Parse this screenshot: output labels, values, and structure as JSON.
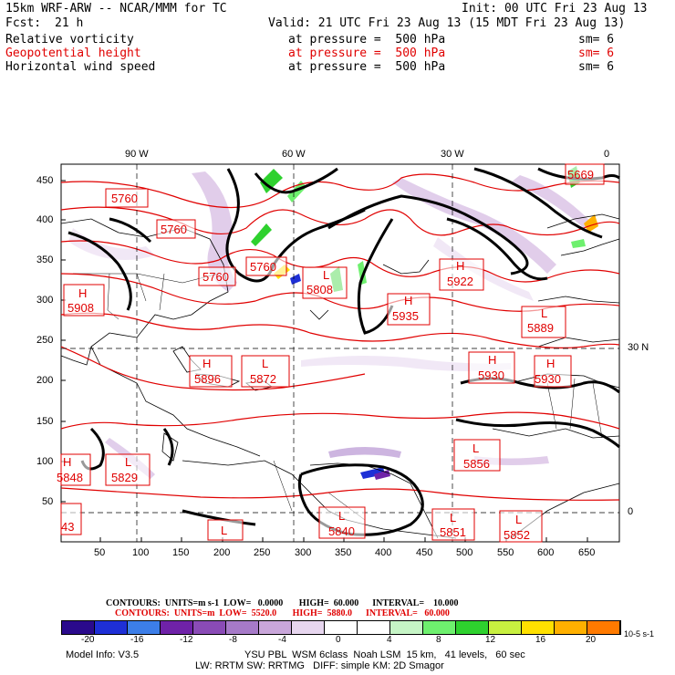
{
  "header": {
    "model": "15km WRF-ARW -- NCAR/MMM for TC",
    "init": "Init: 00 UTC Fri 23 Aug 13",
    "fcst_label": "Fcst:",
    "fcst_value": "21 h",
    "valid": "Valid: 21 UTC Fri 23 Aug 13 (15 MDT Fri 23 Aug 13)"
  },
  "fields": [
    {
      "name": "Relative vorticity",
      "level": "at pressure =  500 hPa",
      "smooth": "sm= 6",
      "color": "#000000"
    },
    {
      "name": "Geopotential height",
      "level": "at pressure =  500 hPa",
      "smooth": "sm= 6",
      "color": "#e00000"
    },
    {
      "name": "Horizontal wind speed",
      "level": "at pressure =  500 hPa",
      "smooth": "sm= 6",
      "color": "#000000"
    }
  ],
  "axes": {
    "lon_labels": [
      "90 W",
      "60 W",
      "30 W",
      "0"
    ],
    "lat_labels": [
      "30 N",
      "0"
    ],
    "y_ticks": [
      "450",
      "400",
      "350",
      "300",
      "250",
      "200",
      "150",
      "100",
      "50"
    ],
    "x_ticks": [
      "50",
      "100",
      "150",
      "200",
      "250",
      "300",
      "350",
      "400",
      "450",
      "500",
      "550",
      "600",
      "650"
    ]
  },
  "height_labels": [
    {
      "type": "",
      "value": "5760"
    },
    {
      "type": "",
      "value": "5760"
    },
    {
      "type": "",
      "value": "5760"
    },
    {
      "type": "",
      "value": "5760"
    },
    {
      "type": "",
      "value": "5669"
    },
    {
      "type": "H",
      "value": "5908"
    },
    {
      "type": "L",
      "value": "5808"
    },
    {
      "type": "H",
      "value": "5922"
    },
    {
      "type": "H",
      "value": "5935"
    },
    {
      "type": "L",
      "value": "5889"
    },
    {
      "type": "H",
      "value": "5896"
    },
    {
      "type": "L",
      "value": "5872"
    },
    {
      "type": "H",
      "value": "5930"
    },
    {
      "type": "H",
      "value": "5930"
    },
    {
      "type": "H",
      "value": "5848"
    },
    {
      "type": "L",
      "value": "5829"
    },
    {
      "type": "L",
      "value": "5856"
    },
    {
      "type": "L",
      "value": "5840"
    },
    {
      "type": "L",
      "value": "5851"
    },
    {
      "type": "L",
      "value": "5852"
    },
    {
      "type": "",
      "value": "43"
    },
    {
      "type": "L",
      "value": ""
    }
  ],
  "contours": {
    "line1": "CONTOURS:  UNITS=m s-1  LOW=   0.0000       HIGH=  60.000      INTERVAL=    10.000",
    "line2": "CONTOURS:  UNITS=m  LOW=  5520.0       HIGH=  5880.0      INTERVAL=   60.000",
    "line2_color": "#e00000"
  },
  "colorbar": {
    "labels": [
      "-20",
      "-16",
      "-12",
      "-8",
      "-4",
      "0",
      "4",
      "8",
      "12",
      "16",
      "20"
    ],
    "units": "10-5 s-1",
    "colors": [
      "#2a0a8c",
      "#1e2fd6",
      "#3c7ee8",
      "#6f22a8",
      "#8a4bb6",
      "#a67ac8",
      "#c9a6da",
      "#e7d6ef",
      "#ffffff",
      "#ffffff",
      "#c6f5c6",
      "#6ef06e",
      "#2ed12e",
      "#c8f040",
      "#ffe000",
      "#ffb000",
      "#ff7a00"
    ]
  },
  "footer": {
    "line1_left": "Model Info: V3.5",
    "line1_right": "YSU PBL  WSM 6class  Noah LSM  15 km,   41 levels,   60 sec",
    "line2": "LW: RRTM SW: RRTMG   DIFF: simple KM: 2D Smagor"
  }
}
